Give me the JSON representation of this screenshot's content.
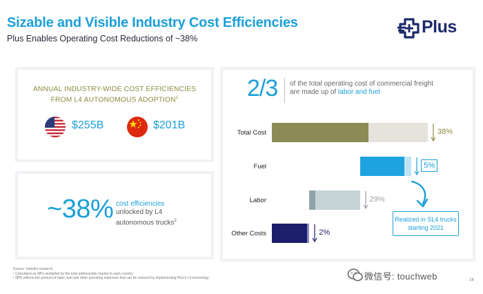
{
  "header": {
    "title": "Sizable and Visible Industry Cost Efficiencies",
    "subtitle": "Plus Enables Operating Cost Reductions of ~38%"
  },
  "logo": {
    "text": "Plus",
    "color": "#1b2a6b"
  },
  "industry_panel": {
    "heading_line1": "ANNUAL INDUSTRY-WIDE COST EFFICIENCIES",
    "heading_line2": "FROM L4 AUTONOMOUS ADOPTION",
    "heading_sup": "1",
    "us": {
      "flag": "us-flag-icon",
      "amount": "$255B"
    },
    "cn": {
      "flag": "china-flag-icon",
      "amount": "$201B"
    }
  },
  "efficiency_panel": {
    "big_value": "~38%",
    "line1": "cost efficiencies",
    "line2": "unlocked by L4",
    "line3": "autonomous trucks",
    "sup": "2"
  },
  "cost_panel": {
    "fraction": "2/3",
    "note_line1": "of the total operating cost of commercial freight",
    "note_line2_prefix": "are made up of ",
    "note_line2_highlight": "labor and fuel",
    "cta_line1": "Realized in SL4 trucks",
    "cta_line2": "starting 2021"
  },
  "chart_data": {
    "type": "bar",
    "title": "",
    "orientation": "horizontal",
    "categories": [
      "Total Cost",
      "Fuel",
      "Labor",
      "Other Costs"
    ],
    "series": [
      {
        "name": "remaining cost",
        "values": [
          62,
          28.5,
          4,
          22.5
        ],
        "colors": [
          "#8c8a55",
          "#1fa3e0",
          "#8fa3aa",
          "#1c1d6b"
        ]
      },
      {
        "name": "reduction",
        "values": [
          38,
          4.5,
          28.5,
          1.5
        ],
        "colors": [
          "#e6e3dc",
          "#bfe4f5",
          "#c5d3d6",
          "#8a8ec4"
        ]
      }
    ],
    "reduction_labels": [
      "38%",
      "5%",
      "29%",
      "2%"
    ],
    "label_colors": [
      "#8c8a3e",
      "#1a9fd8",
      "#9aa0a8",
      "#1c1d6b"
    ],
    "xlim": [
      0,
      100
    ],
    "xlabel": "",
    "ylabel": ""
  },
  "footnotes": [
    "Source: Industry research",
    "¹ Calculated as 38% multiplied by the total addressable market in each country",
    "² 38% reflects the amount of labor, fuel and other operating expenses that can be reduced by implementing Plus's L4 technology"
  ],
  "page_number": "16",
  "watermark": {
    "text": "微信号: touchweb"
  },
  "colors": {
    "accent": "#1a9fd8",
    "olive": "#8c8a3e",
    "navy": "#1c1d6b"
  }
}
